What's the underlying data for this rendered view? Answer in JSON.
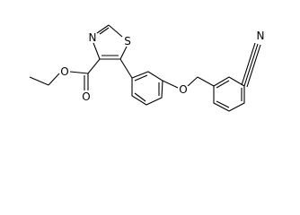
{
  "atoms": [
    {
      "label": "S"
    },
    {
      "label": "N"
    },
    {
      "label": "O"
    },
    {
      "label": "O"
    },
    {
      "label": "O"
    },
    {
      "label": "N"
    }
  ]
}
